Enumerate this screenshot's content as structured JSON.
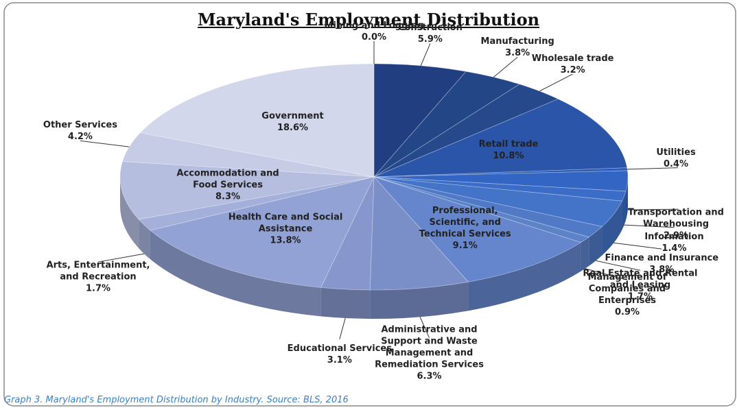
{
  "chart_data": {
    "type": "pie",
    "title": "Maryland's Employment Distribution",
    "caption": "Graph 3. Maryland's Employment Distribution by Industry. Source: BLS, 2016",
    "categories": [
      "Mining and Logging",
      "Construction",
      "Manufacturing",
      "Wholesale trade",
      "Retail trade",
      "Utilities",
      "Transportation and Warehousing",
      "Information",
      "Finance and Insurance",
      "Real Estate and Rental and Leasing",
      "Management of Companies and Enterprises",
      "Professional, Scientific, and Technical Services",
      "Administrative and Support and Waste Management and Remediation Services",
      "Educational Services",
      "Health Care and Social Assistance",
      "Arts, Entertainment, and Recreation",
      "Accommodation and Food Services",
      "Other Services",
      "Government"
    ],
    "values": [
      0.0,
      5.9,
      3.8,
      3.2,
      10.8,
      0.4,
      2.9,
      1.4,
      3.8,
      1.7,
      0.9,
      9.1,
      6.3,
      3.1,
      13.8,
      1.7,
      8.3,
      4.2,
      18.6
    ],
    "value_labels": [
      "0.0%",
      "5.9%",
      "3.8%",
      "3.2%",
      "10.8%",
      "0.4%",
      "2.9%",
      "1.4%",
      "3.8%",
      "1.7%",
      "0.9%",
      "9.1%",
      "6.3%",
      "3.1%",
      "13.8%",
      "1.7%",
      "8.3%",
      "4.2%",
      "18.6%"
    ],
    "colors": [
      "#1f3d7a",
      "#213f80",
      "#234786",
      "#26498c",
      "#2a55a8",
      "#2d5cb5",
      "#3366c4",
      "#3a6cc8",
      "#4474c8",
      "#5079c6",
      "#5c82c8",
      "#6586cc",
      "#7a8fc8",
      "#8796cc",
      "#93a2d4",
      "#a4b0da",
      "#b6bee0",
      "#c6cce6",
      "#d3d7ec"
    ]
  }
}
